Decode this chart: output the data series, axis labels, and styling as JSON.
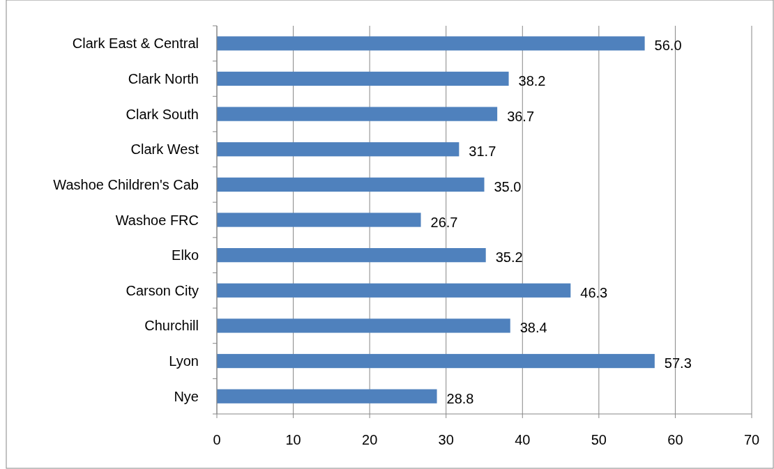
{
  "chart_data": {
    "type": "bar",
    "orientation": "horizontal",
    "categories": [
      "Clark East & Central",
      "Clark North",
      "Clark South",
      "Clark West",
      "Washoe Children's Cab",
      "Washoe FRC",
      "Elko",
      "Carson City",
      "Churchill",
      "Lyon",
      "Nye"
    ],
    "values": [
      56.0,
      38.2,
      36.7,
      31.7,
      35.0,
      26.7,
      35.2,
      46.3,
      38.4,
      57.3,
      28.8
    ],
    "value_labels": [
      "56.0",
      "38.2",
      "36.7",
      "31.7",
      "35.0",
      "26.7",
      "35.2",
      "46.3",
      "38.4",
      "57.3",
      "28.8"
    ],
    "color": "#4f81bd",
    "xlim": [
      0,
      70
    ],
    "xticks": [
      0,
      10,
      20,
      30,
      40,
      50,
      60,
      70
    ],
    "grid": "x"
  }
}
